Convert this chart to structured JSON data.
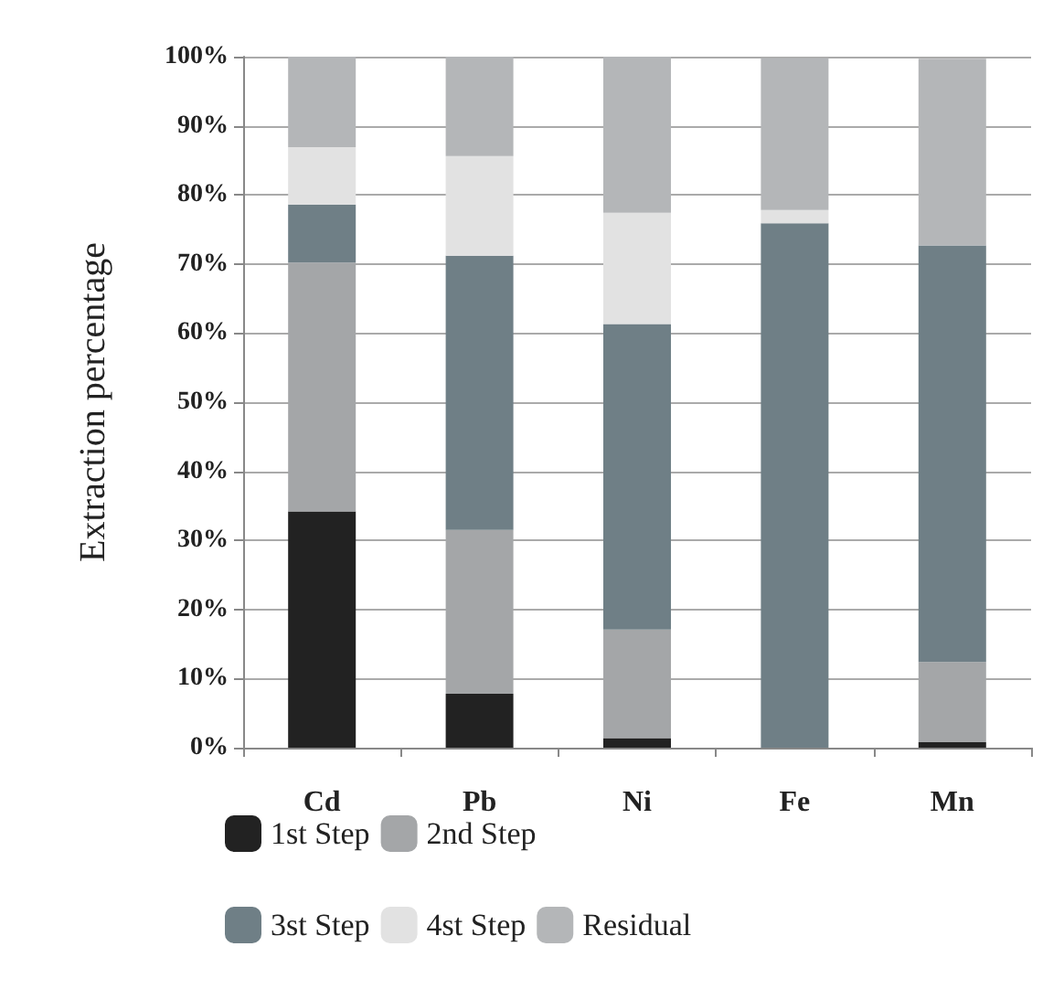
{
  "chart_data": {
    "type": "bar",
    "stacked": true,
    "ylabel": "Extraction percentage",
    "categories": [
      "Cd",
      "Pb",
      "Ni",
      "Fe",
      "Mn"
    ],
    "series": [
      {
        "name": "1st Step",
        "color": "#222222",
        "values": [
          34.2,
          7.8,
          1.4,
          0,
          0.8
        ]
      },
      {
        "name": "2nd Step",
        "color": "#a4a6a8",
        "values": [
          36.0,
          23.7,
          15.7,
          null,
          11.6
        ]
      },
      {
        "name": "3st Step",
        "color": "#6f7f86",
        "values": [
          8.4,
          39.7,
          44.2,
          75.9,
          60.3
        ]
      },
      {
        "name": "4st Step",
        "color": "#e2e2e2",
        "values": [
          8.3,
          14.4,
          16.1,
          1.9,
          null
        ]
      },
      {
        "name": "Residual",
        "color": "#b4b6b8",
        "values": [
          13.1,
          14.4,
          22.6,
          22.0,
          27.0
        ]
      }
    ],
    "ylim": [
      0,
      100
    ],
    "yticks": [
      {
        "value": 0,
        "label": "0%"
      },
      {
        "value": 10,
        "label": "10%"
      },
      {
        "value": 20,
        "label": "20%"
      },
      {
        "value": 30,
        "label": "30%"
      },
      {
        "value": 40,
        "label": "40%"
      },
      {
        "value": 50,
        "label": "50%"
      },
      {
        "value": 60,
        "label": "60%"
      },
      {
        "value": 70,
        "label": "70%"
      },
      {
        "value": 80,
        "label": "80%"
      },
      {
        "value": 90,
        "label": "90%"
      },
      {
        "value": 100,
        "label": "100%"
      }
    ],
    "grid": "y",
    "legend": "bottom"
  }
}
